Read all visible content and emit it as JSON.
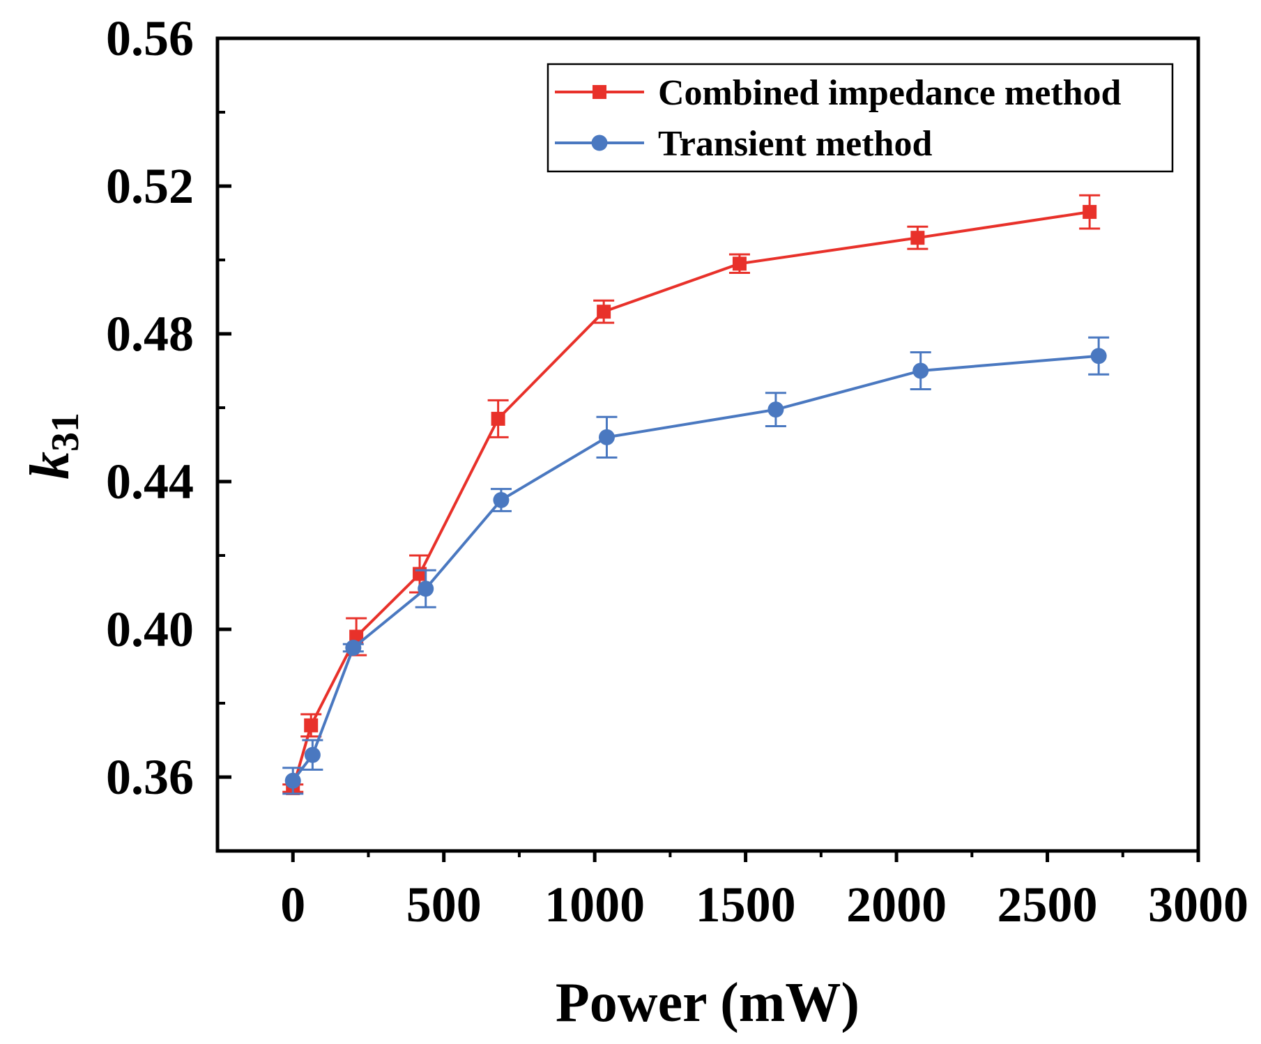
{
  "chart_data": {
    "type": "line",
    "title": "",
    "xlabel": "Power (mW)",
    "ylabel_main": "k",
    "ylabel_sub": "31",
    "xlim": [
      -250,
      3000
    ],
    "ylim": [
      0.34,
      0.56
    ],
    "x_ticks": [
      0,
      500,
      1000,
      1500,
      2000,
      2500,
      3000
    ],
    "x_tick_labels": [
      "0",
      "500",
      "1000",
      "1500",
      "2000",
      "2500",
      "3000"
    ],
    "x_minor_ticks": [
      250,
      750,
      1250,
      1750,
      2250,
      2750
    ],
    "y_ticks": [
      0.36,
      0.4,
      0.44,
      0.48,
      0.52,
      0.56
    ],
    "y_tick_labels": [
      "0.36",
      "0.40",
      "0.44",
      "0.48",
      "0.52",
      "0.56"
    ],
    "y_minor_ticks": [
      0.38,
      0.42,
      0.46,
      0.5,
      0.54
    ],
    "grid": false,
    "legend_position": "top-right",
    "series": [
      {
        "name": "Combined impedance method",
        "color": "#e8312a",
        "marker": "square",
        "x": [
          0,
          60,
          210,
          420,
          680,
          1030,
          1480,
          2070,
          2640
        ],
        "y": [
          0.357,
          0.374,
          0.398,
          0.415,
          0.457,
          0.486,
          0.499,
          0.506,
          0.513
        ],
        "err": [
          0.001,
          0.003,
          0.005,
          0.005,
          0.005,
          0.003,
          0.0025,
          0.003,
          0.0045
        ]
      },
      {
        "name": "Transient method",
        "color": "#4a78c0",
        "marker": "circle",
        "x": [
          0,
          65,
          200,
          440,
          690,
          1040,
          1600,
          2080,
          2670
        ],
        "y": [
          0.359,
          0.366,
          0.395,
          0.411,
          0.435,
          0.452,
          0.4595,
          0.47,
          0.474
        ],
        "err": [
          0.0035,
          0.004,
          0.001,
          0.005,
          0.003,
          0.0055,
          0.0045,
          0.005,
          0.005
        ]
      }
    ]
  }
}
